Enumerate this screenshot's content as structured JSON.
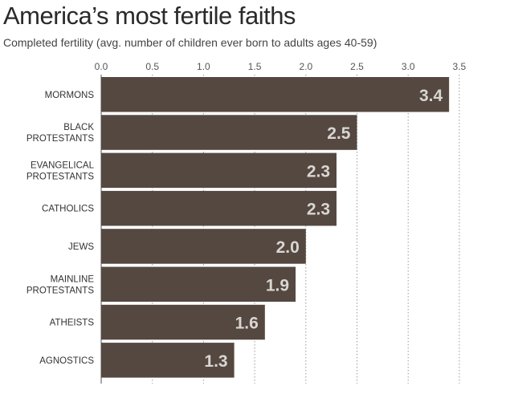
{
  "title": "America’s most fertile faiths",
  "subtitle": "Completed fertility (avg. number of children ever born to adults ages 40-59)",
  "colors": {
    "bar": "#554841",
    "value_label": "#d9d6d2",
    "grid": "#9a9a9a"
  },
  "chart_data": {
    "type": "bar",
    "orientation": "horizontal",
    "title": "America’s most fertile faiths",
    "subtitle": "Completed fertility (avg. number of children ever born to adults ages 40-59)",
    "categories": [
      [
        "MORMONS"
      ],
      [
        "BLACK",
        "PROTESTANTS"
      ],
      [
        "EVANGELICAL",
        "PROTESTANTS"
      ],
      [
        "CATHOLICS"
      ],
      [
        "JEWS"
      ],
      [
        "MAINLINE",
        "PROTESTANTS"
      ],
      [
        "ATHEISTS"
      ],
      [
        "AGNOSTICS"
      ]
    ],
    "values": [
      3.4,
      2.5,
      2.3,
      2.3,
      2.0,
      1.9,
      1.6,
      1.3
    ],
    "value_labels": [
      "3.4",
      "2.5",
      "2.3",
      "2.3",
      "2.0",
      "1.9",
      "1.6",
      "1.3"
    ],
    "xlim": [
      0,
      3.5
    ],
    "ticks": [
      "0.0",
      "0.5",
      "1.0",
      "1.5",
      "2.0",
      "2.5",
      "3.0",
      "3.5"
    ],
    "tick_values": [
      0,
      0.5,
      1.0,
      1.5,
      2.0,
      2.5,
      3.0,
      3.5
    ],
    "grid": true,
    "axis_position": "top"
  }
}
